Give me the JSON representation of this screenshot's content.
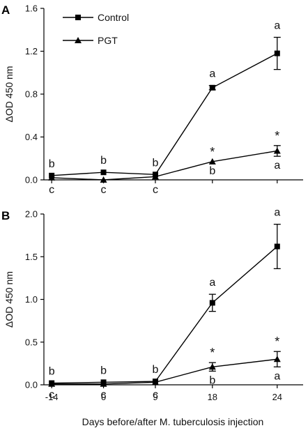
{
  "chart_data": [
    {
      "type": "line",
      "panel_label": "A",
      "ylabel": "ΔOD 450 nm",
      "xlabel": "",
      "ylim": [
        0,
        1.6
      ],
      "yticks": [
        "0.0",
        "0.4",
        "0.8",
        "1.2",
        "1.6"
      ],
      "ytick_values": [
        0,
        0.4,
        0.8,
        1.2,
        1.6
      ],
      "categories": [
        "-14",
        "0",
        "9",
        "18",
        "24"
      ],
      "show_x_tick_labels": false,
      "legend": {
        "position": "top-left",
        "entries": [
          "Control",
          "PGT"
        ]
      },
      "series": [
        {
          "name": "Control",
          "marker": "square",
          "values": [
            0.04,
            0.07,
            0.05,
            0.86,
            1.18
          ],
          "errors": [
            0,
            0,
            0,
            0.02,
            0.15
          ]
        },
        {
          "name": "PGT",
          "marker": "triangle",
          "values": [
            0.02,
            0.0,
            0.03,
            0.17,
            0.27
          ],
          "errors": [
            0,
            0,
            0,
            0,
            0.05
          ]
        }
      ],
      "annotations": {
        "control": [
          "b",
          "b",
          "b",
          "a",
          "a"
        ],
        "pgt": [
          "c",
          "c",
          "c",
          "b",
          "a"
        ],
        "stars": [
          "",
          "",
          "",
          "*",
          "*"
        ]
      }
    },
    {
      "type": "line",
      "panel_label": "B",
      "ylabel": "ΔOD 450 nm",
      "xlabel": "Days before/after M. tuberculosis injection",
      "ylim": [
        0,
        2.0
      ],
      "yticks": [
        "0.0",
        "0.5",
        "1.0",
        "1.5",
        "2.0"
      ],
      "ytick_values": [
        0,
        0.5,
        1.0,
        1.5,
        2.0
      ],
      "categories": [
        "-14",
        "0",
        "9",
        "18",
        "24"
      ],
      "show_x_tick_labels": true,
      "series": [
        {
          "name": "Control",
          "marker": "square",
          "values": [
            0.02,
            0.03,
            0.04,
            0.96,
            1.62
          ],
          "errors": [
            0,
            0,
            0,
            0.1,
            0.26
          ]
        },
        {
          "name": "PGT",
          "marker": "triangle",
          "values": [
            0.01,
            0.01,
            0.03,
            0.21,
            0.3
          ],
          "errors": [
            0,
            0,
            0,
            0.05,
            0.09
          ]
        }
      ],
      "annotations": {
        "control": [
          "b",
          "b",
          "b",
          "a",
          "a"
        ],
        "pgt": [
          "c",
          "c",
          "c",
          "b",
          "a"
        ],
        "stars": [
          "",
          "",
          "",
          "*",
          "*"
        ]
      }
    }
  ]
}
